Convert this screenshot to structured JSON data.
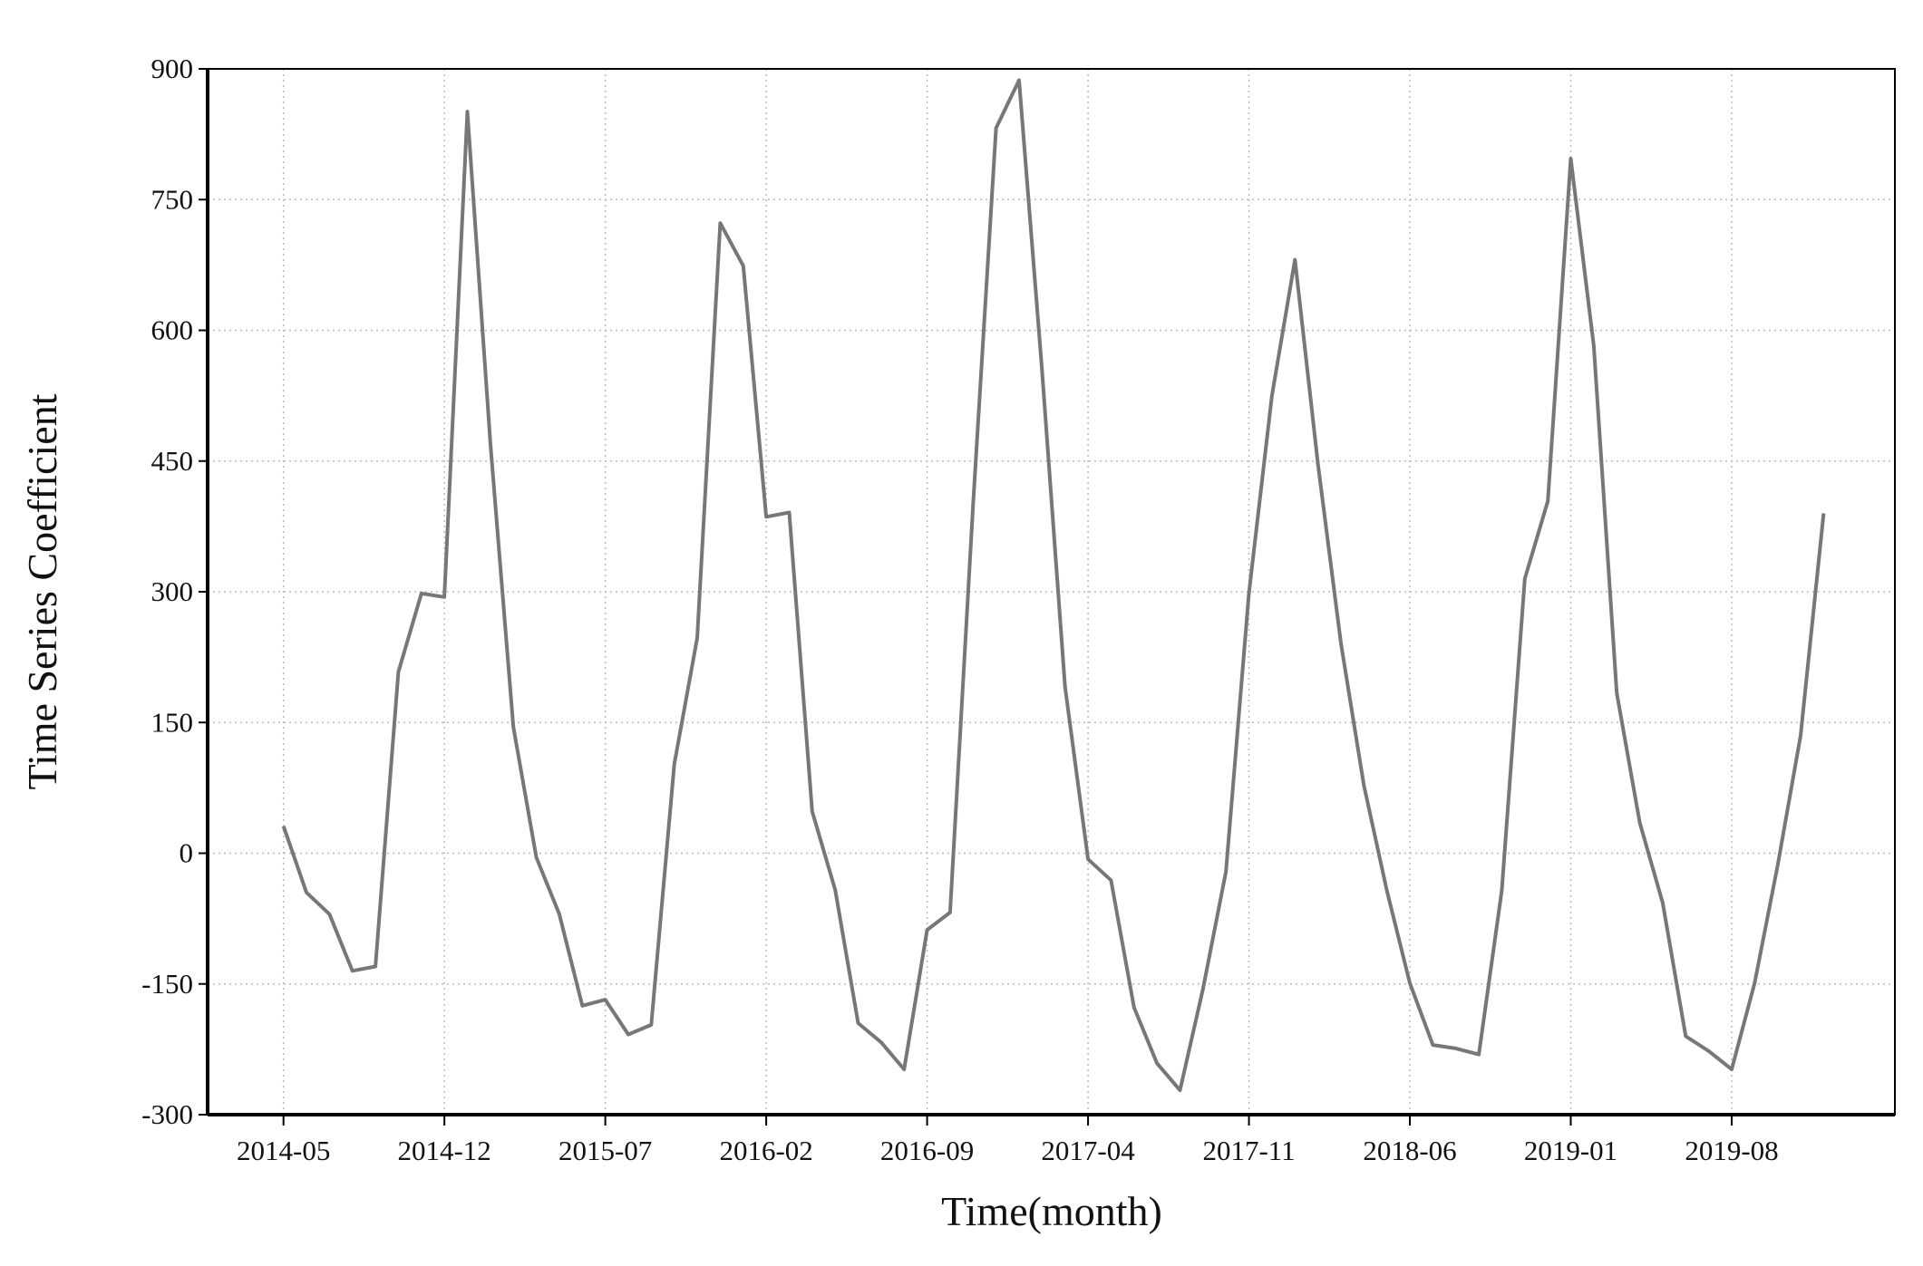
{
  "chart_data": {
    "type": "line",
    "x_label": "Time(month)",
    "y_label": "Time Series Coefficient",
    "categories": [
      "2014-05",
      null,
      null,
      null,
      null,
      null,
      null,
      "2014-12",
      null,
      null,
      null,
      null,
      null,
      null,
      "2015-07",
      null,
      null,
      null,
      null,
      null,
      null,
      "2016-02",
      null,
      null,
      null,
      null,
      null,
      null,
      "2016-09",
      null,
      null,
      null,
      null,
      null,
      null,
      "2017-04",
      null,
      null,
      null,
      null,
      null,
      null,
      "2017-11",
      null,
      null,
      null,
      null,
      null,
      null,
      "2018-06",
      null,
      null,
      null,
      null,
      null,
      null,
      "2019-01",
      null,
      null,
      null,
      null,
      null,
      null,
      "2019-08",
      null,
      null,
      null,
      null
    ],
    "values": [
      31,
      -45,
      -70,
      -135,
      -130,
      208,
      298,
      294,
      851,
      470,
      145,
      -5,
      -70,
      -175,
      -168,
      -208,
      -197,
      102,
      247,
      723,
      674,
      386,
      391,
      48,
      -42,
      -195,
      -217,
      -248,
      -88,
      -68,
      400,
      832,
      887,
      553,
      191,
      -7,
      -31,
      -177,
      -241,
      -272,
      -156,
      -21,
      298,
      525,
      681,
      447,
      241,
      78,
      -43,
      -149,
      -220,
      -224,
      -231,
      -43,
      315,
      404,
      797,
      582,
      184,
      35,
      -57,
      -210,
      -227,
      -248,
      -149,
      -14,
      135,
      390
    ],
    "color": "#777777",
    "xlim": [
      -3.3,
      70.1
    ],
    "ylim": [
      -300,
      900
    ],
    "yticks": [
      -300,
      -150,
      0,
      150,
      300,
      450,
      600,
      750,
      900
    ],
    "grid": true
  }
}
